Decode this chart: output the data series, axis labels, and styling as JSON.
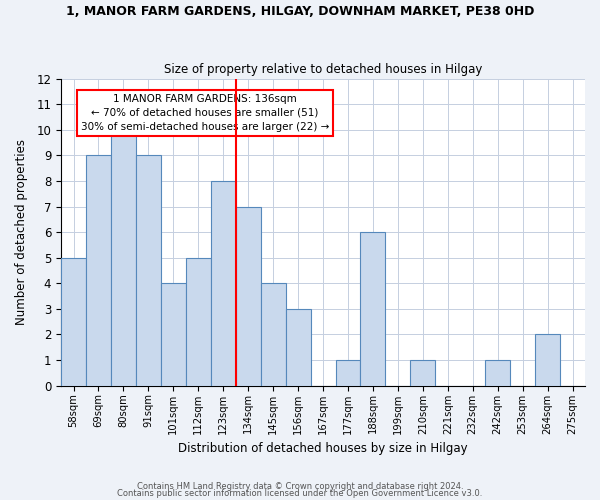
{
  "title1": "1, MANOR FARM GARDENS, HILGAY, DOWNHAM MARKET, PE38 0HD",
  "title2": "Size of property relative to detached houses in Hilgay",
  "xlabel": "Distribution of detached houses by size in Hilgay",
  "ylabel": "Number of detached properties",
  "bin_labels": [
    "58sqm",
    "69sqm",
    "80sqm",
    "91sqm",
    "101sqm",
    "112sqm",
    "123sqm",
    "134sqm",
    "145sqm",
    "156sqm",
    "167sqm",
    "177sqm",
    "188sqm",
    "199sqm",
    "210sqm",
    "221sqm",
    "232sqm",
    "242sqm",
    "253sqm",
    "264sqm",
    "275sqm"
  ],
  "bar_heights": [
    5,
    9,
    10,
    9,
    4,
    5,
    8,
    7,
    4,
    3,
    0,
    1,
    6,
    0,
    1,
    0,
    0,
    1,
    0,
    2,
    0
  ],
  "bar_color": "#c9d9ed",
  "bar_edgecolor": "#5588bb",
  "red_line_x": 7,
  "ylim": [
    0,
    12
  ],
  "yticks": [
    0,
    1,
    2,
    3,
    4,
    5,
    6,
    7,
    8,
    9,
    10,
    11,
    12
  ],
  "annotation_title": "1 MANOR FARM GARDENS: 136sqm",
  "annotation_line1": "← 70% of detached houses are smaller (51)",
  "annotation_line2": "30% of semi-detached houses are larger (22) →",
  "footer1": "Contains HM Land Registry data © Crown copyright and database right 2024.",
  "footer2": "Contains public sector information licensed under the Open Government Licence v3.0.",
  "bg_color": "#eef2f8",
  "plot_bg_color": "#ffffff",
  "grid_color": "#c5cfe0"
}
